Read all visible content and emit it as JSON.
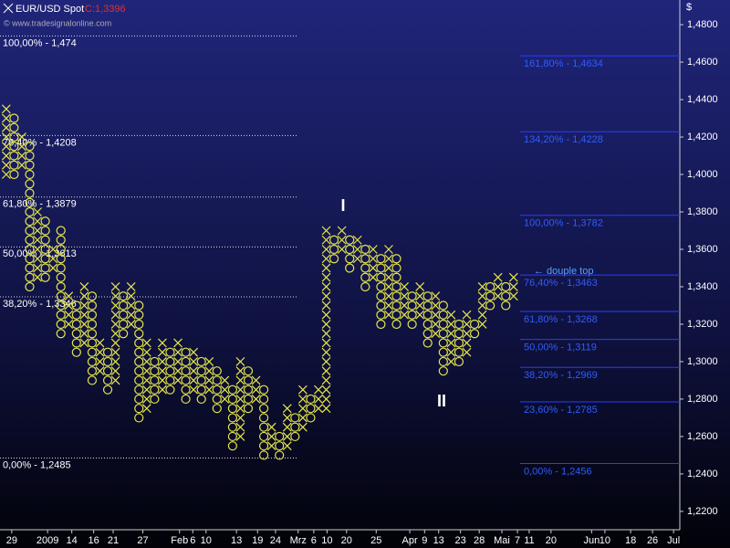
{
  "chart_data": {
    "type": "pnf",
    "title": "EUR/USD Spot",
    "close_label": "C:1,3396",
    "source": "© www.tradesignalonline.com",
    "y_label": "$",
    "box_size": 0.005,
    "color": "#e6e64a",
    "ylim": [
      1.2102,
      1.4932
    ],
    "yticks": [
      {
        "value": 1.22,
        "label": "1,2200"
      },
      {
        "value": 1.24,
        "label": "1,2400"
      },
      {
        "value": 1.26,
        "label": "1,2600"
      },
      {
        "value": 1.28,
        "label": "1,2800"
      },
      {
        "value": 1.3,
        "label": "1,3000"
      },
      {
        "value": 1.32,
        "label": "1,3200"
      },
      {
        "value": 1.34,
        "label": "1,3400"
      },
      {
        "value": 1.36,
        "label": "1,3600"
      },
      {
        "value": 1.38,
        "label": "1,3800"
      },
      {
        "value": 1.4,
        "label": "1,4000"
      },
      {
        "value": 1.42,
        "label": "1,4200"
      },
      {
        "value": 1.44,
        "label": "1,4400"
      },
      {
        "value": 1.46,
        "label": "1,4600"
      },
      {
        "value": 1.48,
        "label": "1,4800"
      }
    ],
    "xlim": [
      -0.8,
      86.3
    ],
    "xticks": [
      {
        "value": 0.7,
        "label": "29"
      },
      {
        "value": 5.3,
        "label": "2009"
      },
      {
        "value": 8.4,
        "label": "14"
      },
      {
        "value": 11.2,
        "label": "16"
      },
      {
        "value": 13.7,
        "label": "21"
      },
      {
        "value": 17.5,
        "label": "27"
      },
      {
        "value": 22.2,
        "label": "Feb"
      },
      {
        "value": 23.9,
        "label": "6"
      },
      {
        "value": 25.6,
        "label": "10"
      },
      {
        "value": 29.5,
        "label": "13"
      },
      {
        "value": 32.2,
        "label": "19"
      },
      {
        "value": 34.5,
        "label": "24"
      },
      {
        "value": 37.4,
        "label": "Mrz"
      },
      {
        "value": 39.4,
        "label": "6"
      },
      {
        "value": 41.1,
        "label": "10"
      },
      {
        "value": 43.6,
        "label": "20"
      },
      {
        "value": 47.4,
        "label": "25"
      },
      {
        "value": 51.7,
        "label": "Apr"
      },
      {
        "value": 53.6,
        "label": "9"
      },
      {
        "value": 55.4,
        "label": "13"
      },
      {
        "value": 58.2,
        "label": "23"
      },
      {
        "value": 60.6,
        "label": "28"
      },
      {
        "value": 63.5,
        "label": "Mai"
      },
      {
        "value": 65.5,
        "label": "7"
      },
      {
        "value": 67,
        "label": "11"
      },
      {
        "value": 69.8,
        "label": "20"
      },
      {
        "value": 75,
        "label": "Jun"
      },
      {
        "value": 76.7,
        "label": "10"
      },
      {
        "value": 80,
        "label": "18"
      },
      {
        "value": 82.8,
        "label": "26"
      },
      {
        "value": 85.5,
        "label": "Jul"
      }
    ],
    "columns": [
      {
        "type": "X",
        "low": 1.4,
        "high": 1.435
      },
      {
        "type": "O",
        "low": 1.4,
        "high": 1.43
      },
      {
        "type": "X",
        "low": 1.405,
        "high": 1.42
      },
      {
        "type": "O",
        "low": 1.34,
        "high": 1.415
      },
      {
        "type": "X",
        "low": 1.345,
        "high": 1.38
      },
      {
        "type": "O",
        "low": 1.345,
        "high": 1.375
      },
      {
        "type": "X",
        "low": 1.35,
        "high": 1.36
      },
      {
        "type": "O",
        "low": 1.315,
        "high": 1.37
      },
      {
        "type": "X",
        "low": 1.32,
        "high": 1.335
      },
      {
        "type": "O",
        "low": 1.305,
        "high": 1.33
      },
      {
        "type": "X",
        "low": 1.31,
        "high": 1.34
      },
      {
        "type": "O",
        "low": 1.29,
        "high": 1.335
      },
      {
        "type": "X",
        "low": 1.295,
        "high": 1.31
      },
      {
        "type": "O",
        "low": 1.285,
        "high": 1.305
      },
      {
        "type": "X",
        "low": 1.29,
        "high": 1.34
      },
      {
        "type": "O",
        "low": 1.315,
        "high": 1.335
      },
      {
        "type": "X",
        "low": 1.32,
        "high": 1.34
      },
      {
        "type": "O",
        "low": 1.27,
        "high": 1.33
      },
      {
        "type": "X",
        "low": 1.275,
        "high": 1.31
      },
      {
        "type": "O",
        "low": 1.28,
        "high": 1.3
      },
      {
        "type": "X",
        "low": 1.285,
        "high": 1.31
      },
      {
        "type": "O",
        "low": 1.285,
        "high": 1.305
      },
      {
        "type": "X",
        "low": 1.29,
        "high": 1.31
      },
      {
        "type": "O",
        "low": 1.28,
        "high": 1.305
      },
      {
        "type": "X",
        "low": 1.285,
        "high": 1.305
      },
      {
        "type": "O",
        "low": 1.28,
        "high": 1.3
      },
      {
        "type": "X",
        "low": 1.285,
        "high": 1.3
      },
      {
        "type": "O",
        "low": 1.275,
        "high": 1.295
      },
      {
        "type": "X",
        "low": 1.28,
        "high": 1.29
      },
      {
        "type": "O",
        "low": 1.255,
        "high": 1.285
      },
      {
        "type": "X",
        "low": 1.26,
        "high": 1.3
      },
      {
        "type": "O",
        "low": 1.275,
        "high": 1.295
      },
      {
        "type": "X",
        "low": 1.28,
        "high": 1.29
      },
      {
        "type": "O",
        "low": 1.25,
        "high": 1.285
      },
      {
        "type": "X",
        "low": 1.255,
        "high": 1.265
      },
      {
        "type": "O",
        "low": 1.25,
        "high": 1.26
      },
      {
        "type": "X",
        "low": 1.255,
        "high": 1.275
      },
      {
        "type": "O",
        "low": 1.26,
        "high": 1.27
      },
      {
        "type": "X",
        "low": 1.265,
        "high": 1.285
      },
      {
        "type": "O",
        "low": 1.27,
        "high": 1.28
      },
      {
        "type": "X",
        "low": 1.275,
        "high": 1.285
      },
      {
        "type": "X",
        "low": 1.275,
        "high": 1.37
      },
      {
        "type": "O",
        "low": 1.355,
        "high": 1.365
      },
      {
        "type": "X",
        "low": 1.36,
        "high": 1.37
      },
      {
        "type": "O",
        "low": 1.35,
        "high": 1.365
      },
      {
        "type": "X",
        "low": 1.355,
        "high": 1.365
      },
      {
        "type": "O",
        "low": 1.34,
        "high": 1.36
      },
      {
        "type": "X",
        "low": 1.345,
        "high": 1.36
      },
      {
        "type": "O",
        "low": 1.32,
        "high": 1.355
      },
      {
        "type": "X",
        "low": 1.325,
        "high": 1.36
      },
      {
        "type": "O",
        "low": 1.32,
        "high": 1.355
      },
      {
        "type": "X",
        "low": 1.325,
        "high": 1.34
      },
      {
        "type": "O",
        "low": 1.32,
        "high": 1.335
      },
      {
        "type": "X",
        "low": 1.325,
        "high": 1.34
      },
      {
        "type": "O",
        "low": 1.31,
        "high": 1.335
      },
      {
        "type": "X",
        "low": 1.315,
        "high": 1.335
      },
      {
        "type": "O",
        "low": 1.295,
        "high": 1.33
      },
      {
        "type": "X",
        "low": 1.3,
        "high": 1.325
      },
      {
        "type": "O",
        "low": 1.3,
        "high": 1.32
      },
      {
        "type": "X",
        "low": 1.305,
        "high": 1.325
      },
      {
        "type": "O",
        "low": 1.315,
        "high": 1.32
      },
      {
        "type": "X",
        "low": 1.32,
        "high": 1.34
      },
      {
        "type": "O",
        "low": 1.33,
        "high": 1.34
      },
      {
        "type": "X",
        "low": 1.335,
        "high": 1.345
      },
      {
        "type": "O",
        "low": 1.33,
        "high": 1.34
      },
      {
        "type": "X",
        "low": 1.335,
        "high": 1.345
      }
    ],
    "retracement_left": [
      {
        "value": 1.474,
        "label": "100,00% - 1,474"
      },
      {
        "value": 1.4208,
        "label": "76,40% - 1,4208"
      },
      {
        "value": 1.3879,
        "label": "61,80% - 1,3879"
      },
      {
        "value": 1.3613,
        "label": "50,00% - 1,3613"
      },
      {
        "value": 1.3346,
        "label": "38,20% - 1,3346"
      },
      {
        "value": 1.2485,
        "label": "0,00% - 1,2485"
      }
    ],
    "retracement_right": [
      {
        "value": 1.4634,
        "label": "161,80% - 1,4634"
      },
      {
        "value": 1.4228,
        "label": "134,20% - 1,4228"
      },
      {
        "value": 1.3782,
        "label": "100,00% - 1,3782"
      },
      {
        "value": 1.3463,
        "label": "76,40% - 1,3463"
      },
      {
        "value": 1.3268,
        "label": "61,80% - 1,3268"
      },
      {
        "value": 1.3119,
        "label": "50,00% - 1,3119"
      },
      {
        "value": 1.2969,
        "label": "38,20% - 1,2969"
      },
      {
        "value": 1.2785,
        "label": "23,60% - 1,2785"
      },
      {
        "value": 1.2456,
        "label": "0,00% - 1,2456"
      }
    ],
    "annotations": [
      "I",
      "II",
      "← douple top"
    ]
  }
}
